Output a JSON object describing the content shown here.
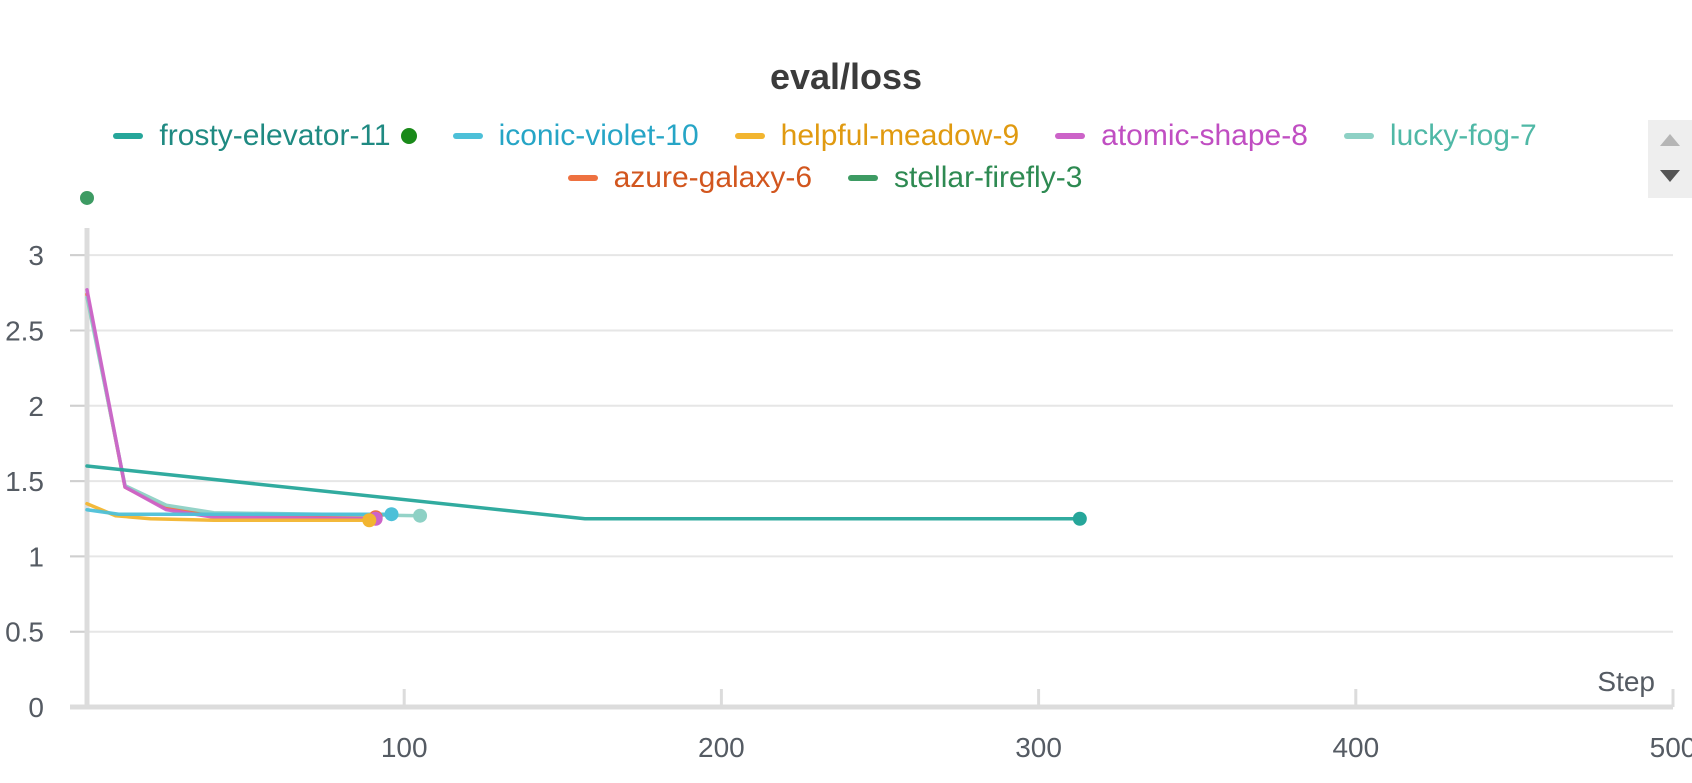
{
  "title": "eval/loss",
  "legend": [
    {
      "name": "frosty-elevator-11",
      "color": "#26a69a",
      "text_color": "#1f8a82",
      "marker": true
    },
    {
      "name": "iconic-violet-10",
      "color": "#4dc0d8",
      "text_color": "#26a5c6"
    },
    {
      "name": "helpful-meadow-9",
      "color": "#f2b530",
      "text_color": "#e09a10"
    },
    {
      "name": "atomic-shape-8",
      "color": "#cc63c8",
      "text_color": "#c04ec2"
    },
    {
      "name": "lucky-fog-7",
      "color": "#8ed1c5",
      "text_color": "#4fb8a6"
    },
    {
      "name": "azure-galaxy-6",
      "color": "#ee7140",
      "text_color": "#d2561e"
    },
    {
      "name": "stellar-firefly-3",
      "color": "#3d9b63",
      "text_color": "#2e8a52"
    }
  ],
  "chart_data": {
    "type": "line",
    "title": "eval/loss",
    "xlabel": "Step",
    "ylabel": "",
    "xlim": [
      0,
      500
    ],
    "ylim": [
      0,
      3.3
    ],
    "x_ticks": [
      100,
      200,
      300,
      400,
      500
    ],
    "y_ticks": [
      "0",
      "0.5",
      "1",
      "1.5",
      "2",
      "2.5",
      "3"
    ],
    "grid": true,
    "legend_position": "top",
    "series": [
      {
        "name": "frosty-elevator-11",
        "color": "#26a69a",
        "x": [
          0,
          157,
          313
        ],
        "y": [
          1.6,
          1.25,
          1.25
        ]
      },
      {
        "name": "iconic-violet-10",
        "color": "#4dc0d8",
        "x": [
          0,
          10,
          96
        ],
        "y": [
          1.31,
          1.28,
          1.28
        ]
      },
      {
        "name": "helpful-meadow-9",
        "color": "#f2b530",
        "x": [
          0,
          9,
          20,
          40,
          89
        ],
        "y": [
          1.35,
          1.27,
          1.25,
          1.24,
          1.24
        ]
      },
      {
        "name": "atomic-shape-8",
        "color": "#cc63c8",
        "x": [
          0,
          12,
          25,
          40,
          91
        ],
        "y": [
          2.77,
          1.46,
          1.31,
          1.26,
          1.25
        ]
      },
      {
        "name": "lucky-fog-7",
        "color": "#8ed1c5",
        "x": [
          0,
          12,
          25,
          40,
          105
        ],
        "y": [
          2.72,
          1.47,
          1.34,
          1.29,
          1.27
        ]
      },
      {
        "name": "azure-galaxy-6",
        "color": "#ee7140",
        "x": [
          0,
          12,
          25,
          40,
          91
        ],
        "y": [
          2.74,
          1.46,
          1.32,
          1.27,
          1.26
        ]
      },
      {
        "name": "stellar-firefly-3",
        "color": "#3d9b63",
        "x": [
          0
        ],
        "y": [
          3.38
        ]
      }
    ]
  }
}
